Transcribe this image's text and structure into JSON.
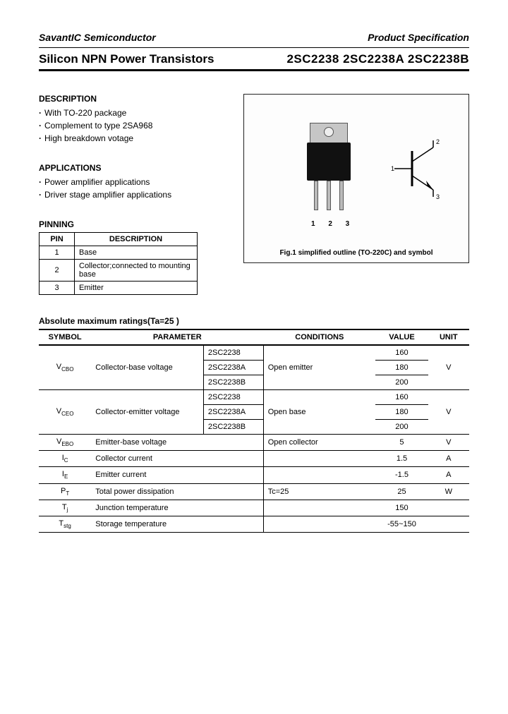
{
  "header": {
    "company": "SavantIC Semiconductor",
    "spec": "Product Specification",
    "title": "Silicon NPN Power Transistors",
    "parts": "2SC2238 2SC2238A 2SC2238B"
  },
  "description": {
    "heading": "DESCRIPTION",
    "items": [
      "With TO-220 package",
      "Complement to type 2SA968",
      "High breakdown votage"
    ]
  },
  "applications": {
    "heading": "APPLICATIONS",
    "items": [
      "Power amplifier applications",
      "Driver stage amplifier applications"
    ]
  },
  "pinning": {
    "heading": "PINNING",
    "col_pin": "PIN",
    "col_desc": "DESCRIPTION",
    "rows": [
      {
        "pin": "1",
        "desc": "Base"
      },
      {
        "pin": "2",
        "desc": "Collector;connected to mounting base"
      },
      {
        "pin": "3",
        "desc": "Emitter"
      }
    ]
  },
  "figure": {
    "pin_nums": "1 2 3",
    "caption": "Fig.1 simplified outline (TO-220C) and symbol",
    "sym_labels": {
      "b": "1",
      "c": "2",
      "e": "3"
    }
  },
  "ratings": {
    "title": "Absolute maximum ratings(Ta=25 )",
    "headers": {
      "symbol": "SYMBOL",
      "param": "PARAMETER",
      "cond": "CONDITIONS",
      "value": "VALUE",
      "unit": "UNIT"
    },
    "vcbo": {
      "symbol": "V",
      "sub": "CBO",
      "param": "Collector-base voltage",
      "cond": "Open emitter",
      "unit": "V",
      "rows": [
        {
          "variant": "2SC2238",
          "value": "160"
        },
        {
          "variant": "2SC2238A",
          "value": "180"
        },
        {
          "variant": "2SC2238B",
          "value": "200"
        }
      ]
    },
    "vceo": {
      "symbol": "V",
      "sub": "CEO",
      "param": "Collector-emitter voltage",
      "cond": "Open base",
      "unit": "V",
      "rows": [
        {
          "variant": "2SC2238",
          "value": "160"
        },
        {
          "variant": "2SC2238A",
          "value": "180"
        },
        {
          "variant": "2SC2238B",
          "value": "200"
        }
      ]
    },
    "simple": [
      {
        "symbol": "V",
        "sub": "EBO",
        "param": "Emitter-base voltage",
        "cond": "Open collector",
        "value": "5",
        "unit": "V"
      },
      {
        "symbol": "I",
        "sub": "C",
        "param": "Collector current",
        "cond": "",
        "value": "1.5",
        "unit": "A"
      },
      {
        "symbol": "I",
        "sub": "E",
        "param": "Emitter current",
        "cond": "",
        "value": "-1.5",
        "unit": "A"
      },
      {
        "symbol": "P",
        "sub": "T",
        "param": "Total power dissipation",
        "cond": "Tc=25",
        "value": "25",
        "unit": "W"
      },
      {
        "symbol": "T",
        "sub": "j",
        "param": "Junction temperature",
        "cond": "",
        "value": "150",
        "unit": ""
      },
      {
        "symbol": "T",
        "sub": "stg",
        "param": "Storage temperature",
        "cond": "",
        "value": "-55~150",
        "unit": ""
      }
    ]
  }
}
